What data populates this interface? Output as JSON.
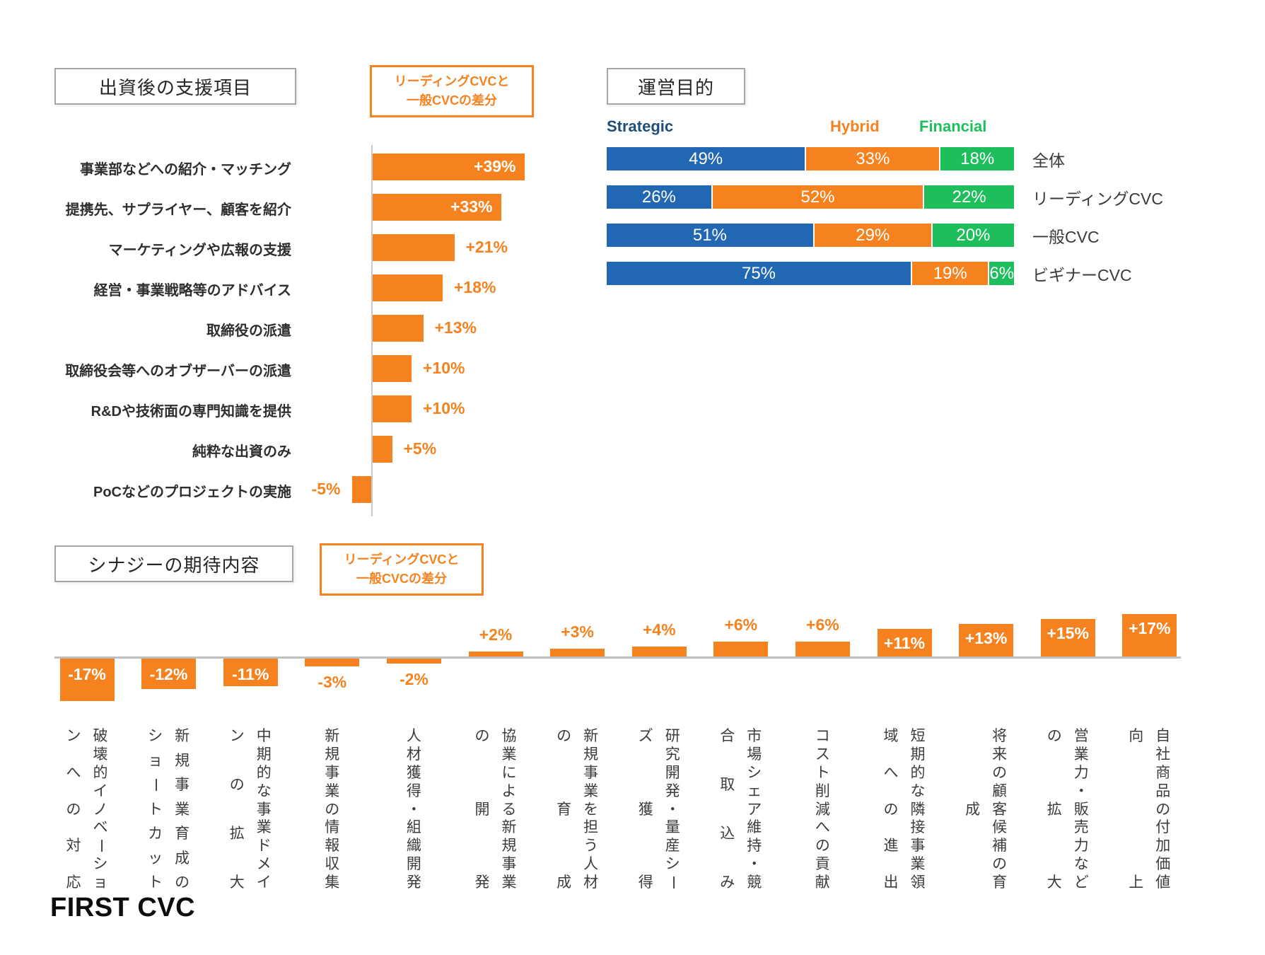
{
  "page": {
    "logo": "FIRST CVC",
    "background": "#FFFFFF"
  },
  "colors": {
    "orange": "#F5821F",
    "blue": "#2267B2",
    "green": "#1EBE5C",
    "strategic_label": "#1F4E79",
    "box_border_gray": "#A6A6A6",
    "axis_gray": "#BFBFBF",
    "text_dark": "#2E2E2E"
  },
  "chart_data": [
    {
      "id": "support",
      "type": "bar",
      "orientation": "horizontal",
      "title": "出資後の支援項目",
      "annotation_lines": [
        "リーディングCVCと",
        "一般CVCの差分"
      ],
      "unit": "%",
      "bar_color": "#F5821F",
      "categories": [
        "事業部などへの紹介・マッチング",
        "提携先、サプライヤー、顧客を紹介",
        "マーケティングや広報の支援",
        "経営・事業戦略等のアドバイス",
        "取締役の派遣",
        "取締役会等へのオブザーバーの派遣",
        "R&Dや技術面の専門知識を提供",
        "純粋な出資のみ",
        "PoCなどのプロジェクトの実施"
      ],
      "values": [
        39,
        33,
        21,
        18,
        13,
        10,
        10,
        5,
        -5
      ],
      "value_labels": [
        "+39%",
        "+33%",
        "+21%",
        "+18%",
        "+13%",
        "+10%",
        "+10%",
        "+5%",
        "-5%"
      ]
    },
    {
      "id": "purpose",
      "type": "bar",
      "subtype": "stacked",
      "orientation": "horizontal",
      "title": "運営目的",
      "unit": "%",
      "legend_position": "top",
      "categories": [
        "全体",
        "リーディングCVC",
        "一般CVC",
        "ビギナーCVC"
      ],
      "series": [
        {
          "name": "Strategic",
          "color": "#2267B2",
          "label_color": "#1F4E79",
          "values": [
            49,
            26,
            51,
            75
          ]
        },
        {
          "name": "Hybrid",
          "color": "#F5821F",
          "label_color": "#F5821F",
          "values": [
            33,
            52,
            29,
            19
          ]
        },
        {
          "name": "Financial",
          "color": "#1EBE5C",
          "label_color": "#1EBE5C",
          "values": [
            18,
            22,
            20,
            6
          ]
        }
      ]
    },
    {
      "id": "synergy",
      "type": "bar",
      "orientation": "vertical",
      "title": "シナジーの期待内容",
      "annotation_lines": [
        "リーディングCVCと",
        "一般CVCの差分"
      ],
      "unit": "%",
      "bar_color": "#F5821F",
      "categories": [
        "破壊的イノベーションへの対応",
        "新規事業育成のショートカット",
        "中期的な事業ドメインの拡大",
        "新規事業の情報収集",
        "人材獲得・組織開発",
        "協業による新規事業の開発",
        "新規事業を担う人材の育成",
        "研究開発・量産シーズ獲得",
        "市場シェア維持・競合取込み",
        "コスト削減への貢献",
        "短期的な隣接事業領域への進出",
        "将来の顧客候補の育成",
        "営業力・販売力などの拡大",
        "自社商品の付加価値向上"
      ],
      "category_lines": [
        [
          "破壊的イノベーショ",
          "ンへの対応"
        ],
        [
          "新規事業育成の",
          "ショートカット"
        ],
        [
          "中期的な事業ドメイ",
          "ンの拡大"
        ],
        [
          "新規事業の情報収集"
        ],
        [
          "人材獲得・組織開発"
        ],
        [
          "協業による新規事業",
          "の開発"
        ],
        [
          "新規事業を担う人材",
          "の育成"
        ],
        [
          "研究開発・量産シー",
          "ズ獲得"
        ],
        [
          "市場シェア維持・競",
          "合取込み"
        ],
        [
          "コスト削減への貢献"
        ],
        [
          "短期的な隣接事業領",
          "域への進出"
        ],
        [
          "将来の顧客候補の育",
          "成"
        ],
        [
          "営業力・販売力など",
          "の拡大"
        ],
        [
          "自社商品の付加価値",
          "向上"
        ]
      ],
      "values": [
        -17,
        -12,
        -11,
        -3,
        -2,
        2,
        3,
        4,
        6,
        6,
        11,
        13,
        15,
        17
      ],
      "value_labels": [
        "-17%",
        "-12%",
        "-11%",
        "-3%",
        "-2%",
        "+2%",
        "+3%",
        "+4%",
        "+6%",
        "+6%",
        "+11%",
        "+13%",
        "+15%",
        "+17%"
      ]
    }
  ]
}
